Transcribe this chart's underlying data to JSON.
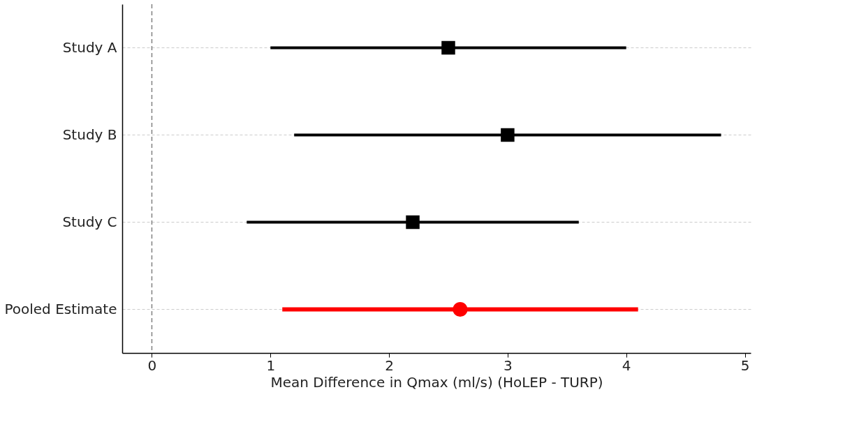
{
  "chart_data": {
    "type": "scatter",
    "orientation": "horizontal",
    "xlabel": "Mean Difference in Qmax (ml/s) (HoLEP - TURP)",
    "categories": [
      "Study A",
      "Study B",
      "Study C",
      "Pooled Estimate"
    ],
    "series": [
      {
        "color": "#000000",
        "marker": "square",
        "values": [
          2.5,
          3.0,
          2.2,
          null
        ],
        "errors": [
          [
            1.0,
            4.0
          ],
          [
            1.2,
            4.8
          ],
          [
            0.8,
            3.6
          ],
          null
        ]
      },
      {
        "color": "#ff0000",
        "marker": "circle",
        "values": [
          null,
          null,
          null,
          2.6
        ],
        "errors": [
          null,
          null,
          null,
          [
            1.1,
            4.1
          ]
        ]
      }
    ],
    "xlim": [
      -0.25,
      5.05
    ],
    "xticks": [
      0,
      1,
      2,
      3,
      4,
      5
    ],
    "grid": "y",
    "ref_lines": [
      {
        "axis": "x",
        "value": 0,
        "color": "#808080",
        "line_style": "dashed"
      }
    ]
  }
}
